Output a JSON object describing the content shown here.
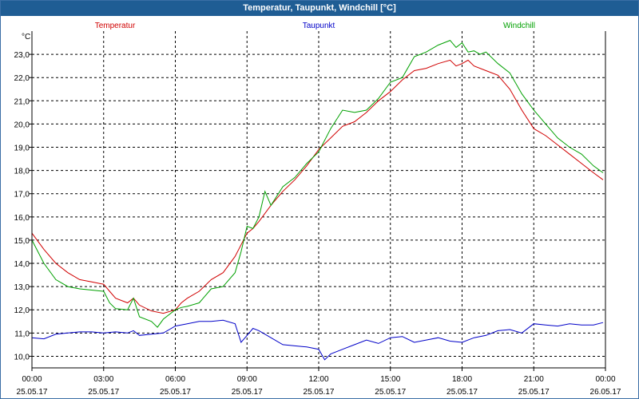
{
  "window": {
    "title": "Temperatur, Taupunkt, Windchill [°C]"
  },
  "chart_data": {
    "type": "line",
    "title": "Temperatur, Taupunkt, Windchill [°C]",
    "ylabel": "°C",
    "xlabel": "",
    "ylim": [
      9.5,
      24.0
    ],
    "xlim": [
      0,
      24
    ],
    "grid": true,
    "yticks": [
      {
        "value": 10,
        "label": "10,0"
      },
      {
        "value": 11,
        "label": "11,0"
      },
      {
        "value": 12,
        "label": "12,0"
      },
      {
        "value": 13,
        "label": "13,0"
      },
      {
        "value": 14,
        "label": "14,0"
      },
      {
        "value": 15,
        "label": "15,0"
      },
      {
        "value": 16,
        "label": "16,0"
      },
      {
        "value": 17,
        "label": "17,0"
      },
      {
        "value": 18,
        "label": "18,0"
      },
      {
        "value": 19,
        "label": "19,0"
      },
      {
        "value": 20,
        "label": "20,0"
      },
      {
        "value": 21,
        "label": "21,0"
      },
      {
        "value": 22,
        "label": "22,0"
      },
      {
        "value": 23,
        "label": "23,0"
      }
    ],
    "xticks": [
      {
        "value": 0,
        "time": "00:00",
        "date": "25.05.17"
      },
      {
        "value": 3,
        "time": "03:00",
        "date": "25.05.17"
      },
      {
        "value": 6,
        "time": "06:00",
        "date": "25.05.17"
      },
      {
        "value": 9,
        "time": "09:00",
        "date": "25.05.17"
      },
      {
        "value": 12,
        "time": "12:00",
        "date": "25.05.17"
      },
      {
        "value": 15,
        "time": "15:00",
        "date": "25.05.17"
      },
      {
        "value": 18,
        "time": "18:00",
        "date": "25.05.17"
      },
      {
        "value": 21,
        "time": "21:00",
        "date": "25.05.17"
      },
      {
        "value": 24,
        "time": "00:00",
        "date": "26.05.17"
      }
    ],
    "series": [
      {
        "name": "Temperatur",
        "color": "#d00000",
        "x": [
          0,
          0.5,
          1,
          1.5,
          2,
          2.5,
          3,
          3.25,
          3.5,
          4,
          4.25,
          4.5,
          5,
          5.5,
          6,
          6.25,
          6.5,
          7,
          7.5,
          8,
          8.5,
          8.75,
          9,
          9.25,
          9.5,
          10,
          10.5,
          11,
          11.5,
          12,
          12.5,
          13,
          13.5,
          14,
          14.5,
          15,
          15.5,
          16,
          16.5,
          17,
          17.5,
          17.75,
          18,
          18.25,
          18.5,
          19,
          19.5,
          20,
          20.5,
          21,
          21.5,
          22,
          22.5,
          23,
          23.5,
          23.9
        ],
        "y": [
          15.3,
          14.6,
          14.0,
          13.6,
          13.3,
          13.2,
          13.1,
          12.8,
          12.5,
          12.3,
          12.5,
          12.2,
          11.95,
          11.85,
          12.0,
          12.3,
          12.5,
          12.8,
          13.3,
          13.6,
          14.3,
          14.8,
          15.3,
          15.5,
          15.8,
          16.5,
          17.1,
          17.6,
          18.2,
          18.9,
          19.4,
          19.9,
          20.1,
          20.5,
          21.0,
          21.4,
          21.9,
          22.3,
          22.4,
          22.6,
          22.75,
          22.5,
          22.6,
          22.75,
          22.5,
          22.3,
          22.1,
          21.5,
          20.6,
          19.8,
          19.5,
          19.1,
          18.7,
          18.3,
          17.9,
          17.6
        ]
      },
      {
        "name": "Taupunkt",
        "color": "#0000c8",
        "x": [
          0,
          0.5,
          1,
          1.5,
          2,
          2.5,
          3,
          3.5,
          4,
          4.25,
          4.5,
          5,
          5.5,
          6,
          6.5,
          7,
          7.5,
          8,
          8.5,
          8.75,
          9,
          9.25,
          9.5,
          10,
          10.5,
          11,
          11.5,
          12,
          12.25,
          12.5,
          13,
          13.5,
          14,
          14.5,
          15,
          15.5,
          16,
          16.5,
          17,
          17.5,
          18,
          18.5,
          19,
          19.5,
          20,
          20.5,
          21,
          21.5,
          22,
          22.5,
          23,
          23.5,
          23.9
        ],
        "y": [
          10.8,
          10.75,
          10.95,
          11.0,
          11.05,
          11.05,
          11.0,
          11.05,
          11.0,
          11.1,
          10.9,
          10.95,
          11.0,
          11.3,
          11.4,
          11.5,
          11.5,
          11.55,
          11.4,
          10.6,
          10.9,
          11.2,
          11.1,
          10.8,
          10.5,
          10.45,
          10.4,
          10.3,
          9.85,
          10.1,
          10.3,
          10.5,
          10.7,
          10.55,
          10.8,
          10.85,
          10.6,
          10.7,
          10.8,
          10.65,
          10.6,
          10.8,
          10.9,
          11.1,
          11.15,
          11.0,
          11.4,
          11.35,
          11.3,
          11.4,
          11.35,
          11.35,
          11.45
        ]
      },
      {
        "name": "Windchill",
        "color": "#00a000",
        "x": [
          0,
          0.5,
          1,
          1.5,
          2,
          2.5,
          3,
          3.25,
          3.5,
          4,
          4.25,
          4.5,
          5,
          5.25,
          5.5,
          6,
          6.25,
          6.5,
          7,
          7.5,
          8,
          8.5,
          8.75,
          9,
          9.25,
          9.5,
          9.75,
          10,
          10.5,
          11,
          11.5,
          12,
          12.5,
          13,
          13.5,
          14,
          14.5,
          15,
          15.5,
          16,
          16.5,
          17,
          17.5,
          17.75,
          18,
          18.25,
          18.5,
          18.75,
          19,
          19.5,
          20,
          20.5,
          21,
          21.5,
          22,
          22.5,
          23,
          23.5,
          23.9
        ],
        "y": [
          15.0,
          14.0,
          13.3,
          13.0,
          12.9,
          12.85,
          12.8,
          12.3,
          12.05,
          12.0,
          12.5,
          11.7,
          11.5,
          11.25,
          11.6,
          12.0,
          12.1,
          12.15,
          12.3,
          12.9,
          13.0,
          13.6,
          14.5,
          15.6,
          15.5,
          16.0,
          17.1,
          16.5,
          17.3,
          17.7,
          18.3,
          18.8,
          19.8,
          20.6,
          20.5,
          20.6,
          21.1,
          21.8,
          22.0,
          22.9,
          23.1,
          23.4,
          23.6,
          23.3,
          23.5,
          23.1,
          23.15,
          23.0,
          23.1,
          22.6,
          22.2,
          21.3,
          20.6,
          20.0,
          19.4,
          19.0,
          18.7,
          18.2,
          17.9
        ]
      }
    ]
  }
}
